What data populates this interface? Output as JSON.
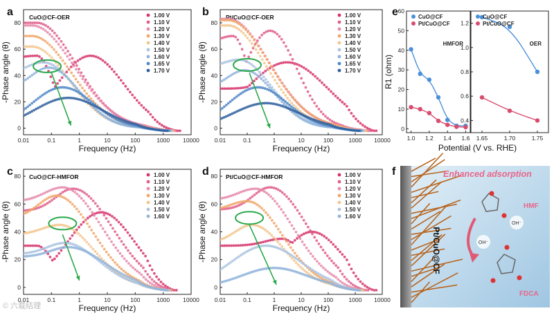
{
  "watermark": "© 六载结理",
  "panel_labels": [
    "a",
    "b",
    "c",
    "d",
    "e",
    "f"
  ],
  "colors": {
    "s0": "#d6336c",
    "s1": "#e05c8a",
    "s2": "#e58aab",
    "s3": "#f1a66a",
    "s4": "#f3c58e",
    "s5": "#a9c3e0",
    "s6": "#8fb3da",
    "s7": "#4f86c6",
    "s8": "#2e5f9e",
    "green": "#2aa84a",
    "blue": "#4a90d9",
    "pink": "#d94c6e"
  },
  "chart_data": [
    {
      "id": "a",
      "type": "scatter",
      "title": "CuO@CF-OER",
      "xlabel": "Frequency (Hz)",
      "ylabel": "-Phase angle (θ)",
      "xscale": "log",
      "xlim": [
        0.01,
        10000
      ],
      "ylim": [
        -5,
        90
      ],
      "xticks": [
        "0.01",
        "0.1",
        "1",
        "10",
        "100",
        "1000",
        "10000"
      ],
      "yticks": [
        "0",
        "20",
        "40",
        "60",
        "80"
      ],
      "legend": [
        "1.00 V",
        "1.10 V",
        "1.20 V",
        "1.30 V",
        "1.40 V",
        "1.50 V",
        "1.60 V",
        "1.65 V",
        "1.70 V"
      ],
      "series": [
        {
          "name": "1.00 V",
          "peaks": [
            [
              0.03,
              55,
              0.6
            ],
            [
              2.5,
              55,
              1.2
            ]
          ],
          "base": 52,
          "fhi": 2000
        },
        {
          "name": "1.10 V",
          "peaks": [
            [
              0.03,
              80,
              1.4
            ]
          ],
          "base": 80,
          "fhi": 1500
        },
        {
          "name": "1.20 V",
          "peaks": [
            [
              0.02,
              78,
              1.5
            ]
          ],
          "base": 78,
          "fhi": 1300
        },
        {
          "name": "1.30 V",
          "peaks": [
            [
              0.02,
              70,
              1.4
            ]
          ],
          "base": 70,
          "fhi": 1200
        },
        {
          "name": "1.40 V",
          "peaks": [
            [
              0.02,
              62,
              1.3
            ]
          ],
          "base": 62,
          "fhi": 1100
        },
        {
          "name": "1.50 V",
          "peaks": [
            [
              0.05,
              50,
              1.2
            ]
          ],
          "base": 40,
          "fhi": 1000
        },
        {
          "name": "1.60 V",
          "peaks": [
            [
              0.08,
              46,
              1.1
            ]
          ],
          "base": 30,
          "fhi": 900
        },
        {
          "name": "1.65 V",
          "peaks": [
            [
              0.25,
              31,
              1.1
            ]
          ],
          "base": 8,
          "fhi": 800
        },
        {
          "name": "1.70 V",
          "peaks": [
            [
              0.4,
              23,
              1.2
            ]
          ],
          "base": 4,
          "fhi": 700
        }
      ],
      "ellipse": {
        "x": 0.07,
        "y": 47
      },
      "arrow": [
        [
          0.1,
          42
        ],
        [
          0.5,
          2
        ]
      ]
    },
    {
      "id": "b",
      "type": "scatter",
      "title": "Pt/CuO@CF-OER",
      "xlabel": "Frequency (Hz)",
      "ylabel": "-Phase angle (θ)",
      "xscale": "log",
      "xlim": [
        0.01,
        10000
      ],
      "ylim": [
        -5,
        90
      ],
      "xticks": [
        "0.01",
        "0.1",
        "1",
        "10",
        "100",
        "1000",
        "10000"
      ],
      "yticks": [
        "0",
        "20",
        "40",
        "60",
        "80"
      ],
      "legend": [
        "1.00 V",
        "1.10 V",
        "1.20 V",
        "1.30 V",
        "1.40 V",
        "1.50 V",
        "1.60 V",
        "1.65 V",
        "1.70 V"
      ],
      "series": [
        {
          "name": "1.00 V",
          "peaks": [
            [
              3,
              50,
              1.5
            ]
          ],
          "base": 30,
          "fhi": 3000
        },
        {
          "name": "1.10 V",
          "peaks": [
            [
              0.03,
              70,
              0.6
            ],
            [
              0.7,
              74,
              1.0
            ]
          ],
          "base": 62,
          "fhi": 2000
        },
        {
          "name": "1.20 V",
          "peaks": [
            [
              0.02,
              83,
              1.5
            ]
          ],
          "base": 83,
          "fhi": 1500
        },
        {
          "name": "1.30 V",
          "peaks": [
            [
              0.02,
              82,
              1.5
            ]
          ],
          "base": 82,
          "fhi": 1300
        },
        {
          "name": "1.40 V",
          "peaks": [
            [
              0.02,
              78,
              1.4
            ]
          ],
          "base": 78,
          "fhi": 1200
        },
        {
          "name": "1.50 V",
          "peaks": [
            [
              0.05,
              52,
              1.2
            ]
          ],
          "base": 45,
          "fhi": 1000
        },
        {
          "name": "1.60 V",
          "peaks": [
            [
              0.08,
              44,
              1.1
            ]
          ],
          "base": 30,
          "fhi": 900
        },
        {
          "name": "1.65 V",
          "peaks": [
            [
              0.25,
              31,
              1.1
            ]
          ],
          "base": 10,
          "fhi": 800
        },
        {
          "name": "1.70 V",
          "peaks": [
            [
              0.5,
              19,
              1.2
            ]
          ],
          "base": 3,
          "fhi": 700
        }
      ],
      "ellipse": {
        "x": 0.1,
        "y": 48
      },
      "arrow": [
        [
          0.12,
          42
        ],
        [
          0.7,
          0
        ]
      ]
    },
    {
      "id": "c",
      "type": "scatter",
      "title": "CuO@CF-HMFOR",
      "xlabel": "Frequency (Hz)",
      "ylabel": "-Phase angle (θ)",
      "xscale": "log",
      "xlim": [
        0.01,
        10000
      ],
      "ylim": [
        -5,
        85
      ],
      "xticks": [
        "0.01",
        "0.1",
        "1",
        "10",
        "100",
        "1000",
        "10000"
      ],
      "yticks": [
        "0",
        "20",
        "40",
        "60",
        "80"
      ],
      "legend": [
        "1.00 V",
        "1.10 V",
        "1.20 V",
        "1.30 V",
        "1.40 V",
        "1.50 V",
        "1.60 V"
      ],
      "series": [
        {
          "name": "1.00 V",
          "peaks": [
            [
              0.03,
              30,
              0.6
            ],
            [
              6,
              54,
              1.2
            ]
          ],
          "base": 30,
          "fhi": 1500
        },
        {
          "name": "1.10 V",
          "peaks": [
            [
              0.6,
              71,
              1.4
            ]
          ],
          "base": 55,
          "fhi": 1200
        },
        {
          "name": "1.20 V",
          "peaks": [
            [
              0.25,
              72,
              1.4
            ]
          ],
          "base": 62,
          "fhi": 1000
        },
        {
          "name": "1.30 V",
          "peaks": [
            [
              0.15,
              66,
              1.3
            ]
          ],
          "base": 50,
          "fhi": 900
        },
        {
          "name": "1.40 V",
          "peaks": [
            [
              0.2,
              45,
              1.2
            ]
          ],
          "base": 38,
          "fhi": 800
        },
        {
          "name": "1.50 V",
          "peaks": [
            [
              0.3,
              32,
              1.2
            ]
          ],
          "base": 24,
          "fhi": 800
        },
        {
          "name": "1.60 V",
          "peaks": [
            [
              0.4,
              29,
              1.3
            ]
          ],
          "base": 22,
          "fhi": 700
        }
      ],
      "ellipse": {
        "x": 0.25,
        "y": 46
      },
      "arrow": [
        [
          0.25,
          38
        ],
        [
          1.0,
          5
        ]
      ]
    },
    {
      "id": "d",
      "type": "scatter",
      "title": "Pt/CuO@CF-HMFOR",
      "xlabel": "Frequency (Hz)",
      "ylabel": "-Phase angle (θ)",
      "xscale": "log",
      "xlim": [
        0.01,
        10000
      ],
      "ylim": [
        -5,
        85
      ],
      "xticks": [
        "0.01",
        "0.1",
        "1",
        "10",
        "100",
        "1000",
        "10000"
      ],
      "yticks": [
        "0",
        "20",
        "40",
        "60",
        "80"
      ],
      "legend": [
        "1.00 V",
        "1.10 V",
        "1.20 V",
        "1.30 V",
        "1.40 V",
        "1.50 V",
        "1.60 V"
      ],
      "series": [
        {
          "name": "1.00 V",
          "peaks": [
            [
              2,
              35,
              0.8
            ],
            [
              25,
              40,
              1.1
            ]
          ],
          "base": 30,
          "fhi": 3000
        },
        {
          "name": "1.10 V",
          "peaks": [
            [
              0.7,
              72,
              1.4
            ]
          ],
          "base": 56,
          "fhi": 1500
        },
        {
          "name": "1.20 V",
          "peaks": [
            [
              0.2,
              71,
              1.4
            ]
          ],
          "base": 63,
          "fhi": 1200
        },
        {
          "name": "1.30 V",
          "peaks": [
            [
              0.1,
              62,
              1.3
            ]
          ],
          "base": 55,
          "fhi": 1000
        },
        {
          "name": "1.40 V",
          "peaks": [
            [
              0.15,
              45,
              1.2
            ]
          ],
          "base": 32,
          "fhi": 900
        },
        {
          "name": "1.50 V",
          "peaks": [
            [
              0.5,
              30,
              1.3
            ]
          ],
          "base": 12,
          "fhi": 800
        },
        {
          "name": "1.60 V",
          "peaks": [
            [
              1.0,
              14,
              1.2
            ]
          ],
          "base": 2,
          "fhi": 700
        }
      ],
      "ellipse": {
        "x": 0.12,
        "y": 50
      },
      "arrow": [
        [
          0.12,
          45
        ],
        [
          1.2,
          2
        ]
      ]
    },
    {
      "id": "e1",
      "type": "scatter",
      "subtitle": "HMFOR",
      "ylabel": "R1 (ohm)",
      "xlabel": "Potential (V vs. RHE)",
      "xlim": [
        0.95,
        1.65
      ],
      "ylim": [
        -2,
        60
      ],
      "xticks": [
        "1.0",
        "1.2",
        "1.4",
        "1.6"
      ],
      "yticks": [
        "0",
        "10",
        "20",
        "30",
        "40",
        "50",
        "60"
      ],
      "legend": [
        "CuO@CF",
        "Pt/CuO@CF"
      ],
      "series": [
        {
          "name": "CuO@CF",
          "x": [
            1.0,
            1.1,
            1.2,
            1.3,
            1.4,
            1.5,
            1.6
          ],
          "y": [
            40.5,
            28,
            25,
            16,
            4.5,
            1.5,
            1.5
          ]
        },
        {
          "name": "Pt/CuO@CF",
          "x": [
            1.0,
            1.1,
            1.2,
            1.3,
            1.4,
            1.5,
            1.6
          ],
          "y": [
            11,
            10,
            8,
            4,
            2,
            1,
            0.8
          ]
        }
      ]
    },
    {
      "id": "e2",
      "type": "scatter",
      "subtitle": "OER",
      "xlim": [
        1.63,
        1.77
      ],
      "ylim": [
        0.3,
        1.3
      ],
      "xticks": [
        "1.65",
        "1.70",
        "1.75"
      ],
      "yticks": [
        "0.4",
        "0.6",
        "0.8",
        "1.0",
        "1.2"
      ],
      "legend": [
        "CuO@CF",
        "Pt/CuO@CF"
      ],
      "series": [
        {
          "name": "CuO@CF",
          "x": [
            1.65,
            1.7,
            1.75
          ],
          "y": [
            1.25,
            1.17,
            0.8
          ]
        },
        {
          "name": "Pt/CuO@CF",
          "x": [
            1.65,
            1.7,
            1.75
          ],
          "y": [
            0.59,
            0.48,
            0.4
          ]
        }
      ]
    }
  ],
  "panel_f": {
    "title": "Enhanced adsorption",
    "electrode": "Pt/CuO@CF",
    "hmf": "HMF",
    "fdca": "FDCA",
    "oh1": "OH⁻",
    "oh2": "OH⁻"
  }
}
